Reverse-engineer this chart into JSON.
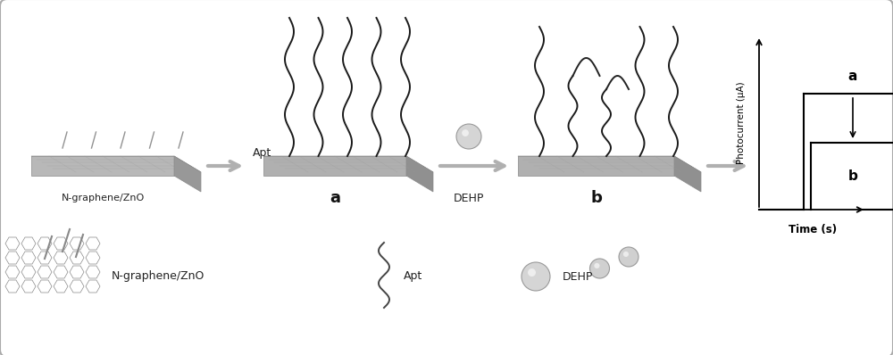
{
  "bg_color": "#ffffff",
  "border_color": "#aaaaaa",
  "label_ngraphene": "N-graphene/ZnO",
  "label_apt": "Apt",
  "label_dehp": "DEHP",
  "label_a": "a",
  "label_b": "b",
  "label_photocurrent": "Photocurrent (μA)",
  "label_time": "Time (s)",
  "legend_ngraphene": "N-graphene/ZnO",
  "legend_apt": "Apt",
  "legend_dehp": "DEHP",
  "electrode_top_color": "#d0d0d0",
  "electrode_side_color": "#b0b0b0",
  "electrode_right_color": "#989898",
  "wavy_color": "#222222",
  "arrow_gray": "#aaaaaa",
  "ball_color": "#d8d8d8",
  "text_color": "#222222"
}
